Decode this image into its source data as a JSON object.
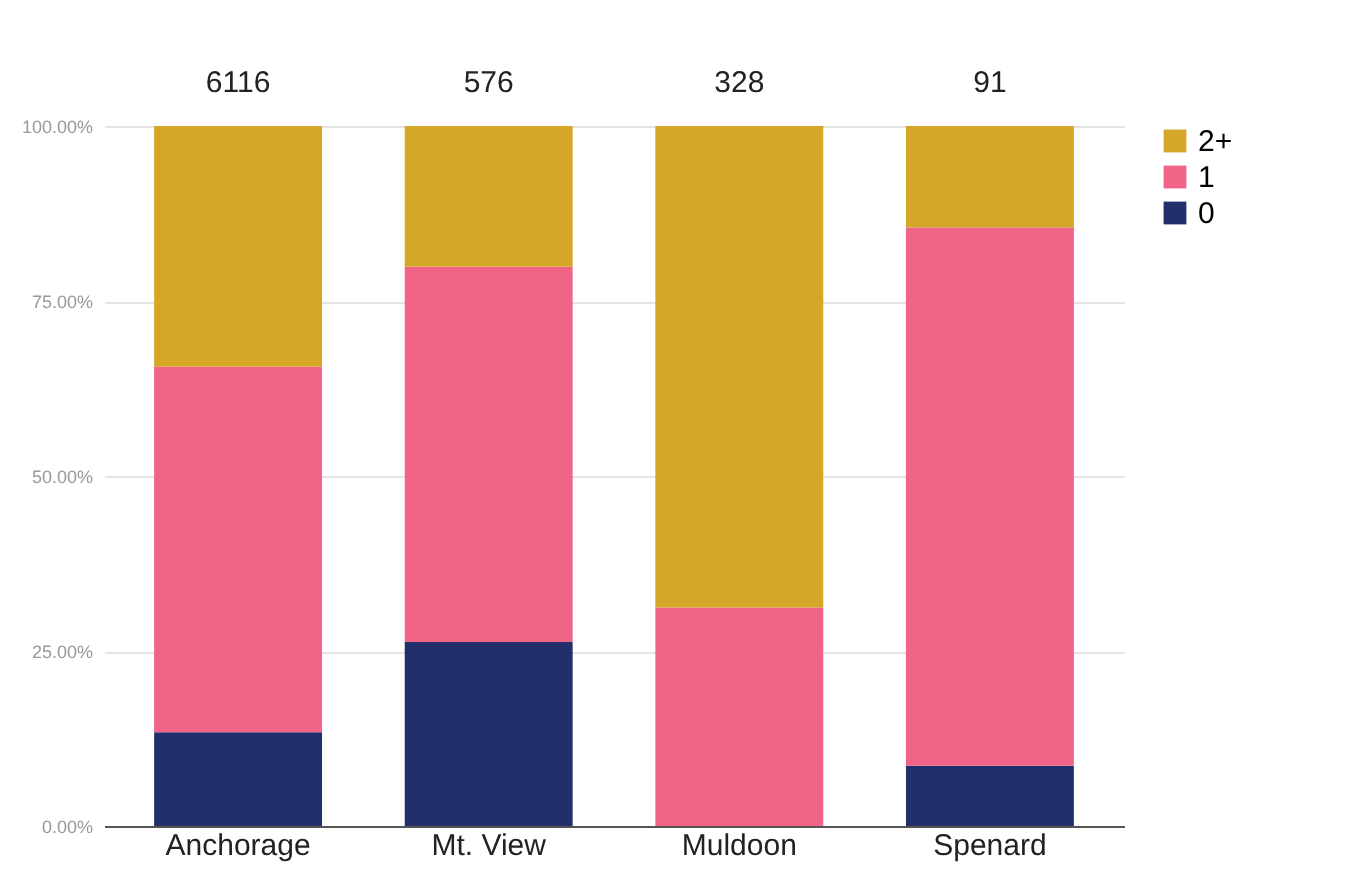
{
  "chart_data": {
    "type": "bar",
    "stacked": true,
    "categories": [
      "Anchorage",
      "Mt. View",
      "Muldoon",
      "Spenard"
    ],
    "series": [
      {
        "name": "0",
        "color": "#232f6b",
        "values": [
          13.4,
          26.3,
          0,
          8.6
        ]
      },
      {
        "name": "1",
        "color": "#ef6487",
        "values": [
          52.2,
          53.6,
          31.2,
          76.9
        ]
      },
      {
        "name": "2+",
        "color": "#d6a629",
        "values": [
          34.4,
          20.1,
          68.8,
          14.5
        ]
      }
    ],
    "ylim": [
      0,
      100
    ],
    "yticks": [
      {
        "value": 0,
        "label": "0.00%"
      },
      {
        "value": 25,
        "label": "25.00%"
      },
      {
        "value": 50,
        "label": "50.00%"
      },
      {
        "value": 75,
        "label": "75.00%"
      },
      {
        "value": 100,
        "label": "100.00%"
      }
    ],
    "annotations": [
      {
        "text": "6116",
        "x": "Anchorage",
        "y": 100
      },
      {
        "text": "576",
        "x": "Mt. View",
        "y": 100
      },
      {
        "text": "328",
        "x": "Muldoon",
        "y": 100
      },
      {
        "text": "91",
        "x": "Spenard",
        "y": 100
      }
    ],
    "grid": "y",
    "legend": "top right"
  }
}
